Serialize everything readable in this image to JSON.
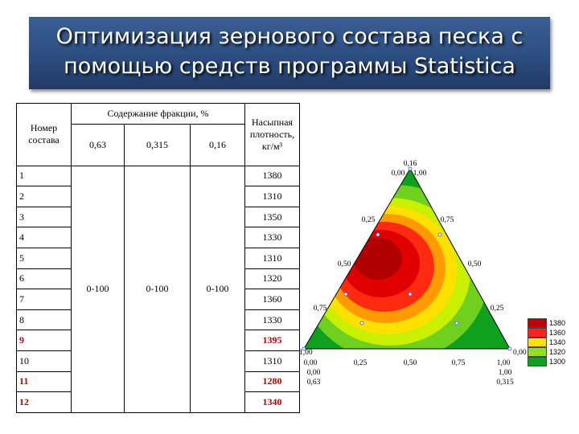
{
  "title": "Оптимизация зернового состава песка с помощью средств программы Statistica",
  "table": {
    "col_number": "Номер состава",
    "col_fraction": "Содержание фракции, %",
    "fractions": [
      "0,63",
      "0,315",
      "0,16"
    ],
    "col_density": "Насыпная плотность, кг/м³",
    "fraction_range": [
      "0-100",
      "0-100",
      "0-100"
    ],
    "rows": [
      {
        "n": "1",
        "density": "1380",
        "highlight": false
      },
      {
        "n": "2",
        "density": "1310",
        "highlight": false
      },
      {
        "n": "3",
        "density": "1350",
        "highlight": false
      },
      {
        "n": "4",
        "density": "1330",
        "highlight": false
      },
      {
        "n": "5",
        "density": "1310",
        "highlight": false
      },
      {
        "n": "6",
        "density": "1320",
        "highlight": false
      },
      {
        "n": "7",
        "density": "1360",
        "highlight": false
      },
      {
        "n": "8",
        "density": "1330",
        "highlight": false
      },
      {
        "n": "9",
        "density": "1395",
        "highlight": true
      },
      {
        "n": "10",
        "density": "1310",
        "highlight": false
      },
      {
        "n": "11",
        "density": "1280",
        "highlight": true
      },
      {
        "n": "12",
        "density": "1340",
        "highlight": true
      }
    ]
  },
  "ternary": {
    "top_labels": [
      "0,16",
      "0,00",
      "1,00"
    ],
    "left_edge_ticks": [
      "0,25",
      "0,50",
      "0,75"
    ],
    "right_edge_ticks": [
      "0,75",
      "0,50",
      "0,25"
    ],
    "bottom_ticks": [
      "0,00",
      "0,25",
      "0,50",
      "0,75",
      "1,00"
    ],
    "bottom_left_labels": [
      "1,00",
      "0,00",
      "0,63"
    ],
    "bottom_right_labels": [
      "0,00",
      "1,00",
      "0,315"
    ],
    "legend": [
      {
        "label": "1380",
        "color": "#c00000"
      },
      {
        "label": "1360",
        "color": "#ff2020"
      },
      {
        "label": "1340",
        "color": "#ffe000"
      },
      {
        "label": "1320",
        "color": "#90e020"
      },
      {
        "label": "1300",
        "color": "#10a020"
      }
    ]
  }
}
